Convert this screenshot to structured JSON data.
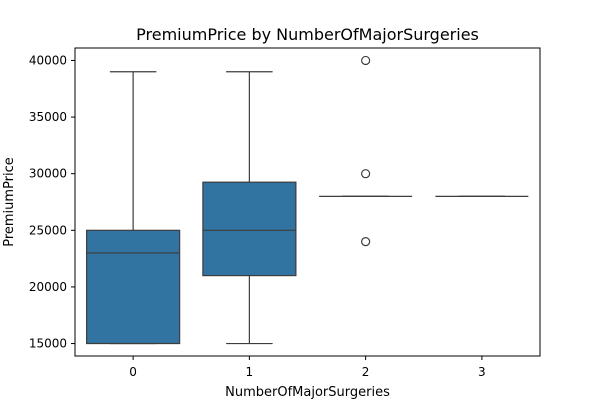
{
  "chart_data": {
    "type": "box",
    "title": "PremiumPrice by NumberOfMajorSurgeries",
    "xlabel": "NumberOfMajorSurgeries",
    "ylabel": "PremiumPrice",
    "categories": [
      "0",
      "1",
      "2",
      "3"
    ],
    "ylim": [
      13900,
      41100
    ],
    "yticks": [
      15000,
      20000,
      25000,
      30000,
      35000,
      40000
    ],
    "ytick_labels": [
      "15000",
      "20000",
      "25000",
      "30000",
      "35000",
      "40000"
    ],
    "grid": false,
    "boxes": [
      {
        "category": "0",
        "whisker_low": 15000,
        "q1": 15000,
        "median": 23000,
        "q3": 25000,
        "whisker_high": 39000,
        "outliers": []
      },
      {
        "category": "1",
        "whisker_low": 15000,
        "q1": 21000,
        "median": 25000,
        "q3": 29250,
        "whisker_high": 39000,
        "outliers": []
      },
      {
        "category": "2",
        "whisker_low": 28000,
        "q1": 28000,
        "median": 28000,
        "q3": 28000,
        "whisker_high": 28000,
        "outliers": [
          40000,
          30000,
          24000
        ]
      },
      {
        "category": "3",
        "whisker_low": 28000,
        "q1": 28000,
        "median": 28000,
        "q3": 28000,
        "whisker_high": 28000,
        "outliers": []
      }
    ],
    "box_color": "#3274a1",
    "line_color": "#3d3d3d"
  }
}
